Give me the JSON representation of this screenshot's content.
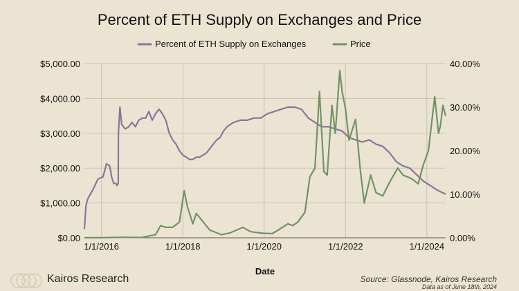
{
  "chart_data": {
    "type": "line",
    "title": "Percent of ETH Supply on Exchanges and Price",
    "xlabel": "Date",
    "x_ticks": [
      "1/1/2016",
      "1/1/2018",
      "1/1/2020",
      "1/1/2022",
      "1/1/2024"
    ],
    "x_range": [
      "2015-08-01",
      "2024-06-18"
    ],
    "y_left": {
      "label": "",
      "range": [
        0,
        5000
      ],
      "ticks": [
        "$0.00",
        "$1,000.00",
        "$2,000.00",
        "$3,000.00",
        "$4,000.00",
        "$5,000.00"
      ]
    },
    "y_right": {
      "label": "",
      "range": [
        0,
        40
      ],
      "ticks": [
        "0.00%",
        "10.00%",
        "20.00%",
        "30.00%",
        "40.00%"
      ]
    },
    "grid": true,
    "legend_position": "top-center",
    "series": [
      {
        "name": "Percent of ETH Supply on Exchanges",
        "axis": "right",
        "color": "#8c7499",
        "x": [
          "2015-08-01",
          "2015-08-15",
          "2015-09-01",
          "2015-10-15",
          "2015-12-01",
          "2016-01-15",
          "2016-02-15",
          "2016-03-15",
          "2016-04-01",
          "2016-04-20",
          "2016-05-10",
          "2016-05-20",
          "2016-05-31",
          "2016-06-01",
          "2016-06-15",
          "2016-07-01",
          "2016-08-01",
          "2016-09-01",
          "2016-10-01",
          "2016-11-01",
          "2016-12-01",
          "2017-01-01",
          "2017-02-01",
          "2017-03-01",
          "2017-04-01",
          "2017-05-01",
          "2017-06-01",
          "2017-07-01",
          "2017-08-01",
          "2017-09-01",
          "2017-10-01",
          "2017-11-01",
          "2017-12-01",
          "2018-01-01",
          "2018-02-01",
          "2018-03-01",
          "2018-04-01",
          "2018-05-01",
          "2018-06-01",
          "2018-07-01",
          "2018-08-01",
          "2018-09-01",
          "2018-10-01",
          "2018-11-01",
          "2018-12-01",
          "2019-01-01",
          "2019-02-01",
          "2019-04-01",
          "2019-06-01",
          "2019-08-01",
          "2019-10-01",
          "2019-12-01",
          "2020-02-01",
          "2020-04-01",
          "2020-06-01",
          "2020-08-01",
          "2020-10-01",
          "2020-12-01",
          "2021-02-01",
          "2021-04-01",
          "2021-06-01",
          "2021-08-01",
          "2021-10-01",
          "2021-12-01",
          "2022-02-01",
          "2022-04-01",
          "2022-06-01",
          "2022-08-01",
          "2022-10-01",
          "2022-12-01",
          "2023-02-01",
          "2023-04-01",
          "2023-06-01",
          "2023-08-01",
          "2023-10-01",
          "2023-12-01",
          "2024-02-01",
          "2024-04-01",
          "2024-06-18"
        ],
        "values": [
          2.0,
          7.5,
          9.0,
          11.0,
          13.5,
          14.0,
          17.0,
          16.5,
          14.0,
          12.5,
          12.5,
          12.0,
          12.5,
          24.0,
          30.0,
          26.0,
          25.0,
          25.5,
          26.5,
          25.5,
          27.0,
          27.5,
          27.5,
          29.0,
          27.0,
          28.5,
          29.5,
          28.5,
          27.0,
          24.0,
          22.5,
          21.5,
          20.0,
          19.0,
          18.5,
          18.0,
          18.0,
          18.5,
          18.5,
          19.0,
          19.5,
          20.5,
          21.5,
          22.5,
          23.0,
          24.5,
          25.5,
          26.5,
          27.0,
          27.0,
          27.5,
          27.5,
          28.5,
          29.0,
          29.5,
          30.0,
          30.0,
          29.5,
          27.5,
          26.5,
          25.5,
          25.5,
          25.0,
          24.5,
          23.0,
          22.5,
          22.0,
          22.5,
          21.5,
          21.0,
          19.5,
          17.5,
          16.5,
          16.0,
          14.5,
          13.0,
          12.0,
          11.0,
          10.0
        ]
      },
      {
        "name": "Price",
        "axis": "left",
        "color": "#6f9366",
        "x": [
          "2015-08-01",
          "2016-01-01",
          "2016-06-01",
          "2017-01-01",
          "2017-03-01",
          "2017-05-01",
          "2017-06-15",
          "2017-08-01",
          "2017-10-01",
          "2017-12-01",
          "2018-01-13",
          "2018-02-10",
          "2018-04-01",
          "2018-05-01",
          "2018-07-01",
          "2018-09-01",
          "2018-12-15",
          "2019-03-01",
          "2019-06-25",
          "2019-09-01",
          "2019-12-15",
          "2020-03-13",
          "2020-05-01",
          "2020-08-01",
          "2020-09-15",
          "2020-11-01",
          "2021-01-01",
          "2021-02-15",
          "2021-04-01",
          "2021-05-12",
          "2021-06-20",
          "2021-07-20",
          "2021-09-01",
          "2021-10-01",
          "2021-11-10",
          "2021-12-01",
          "2022-01-01",
          "2022-02-01",
          "2022-04-01",
          "2022-05-15",
          "2022-06-18",
          "2022-08-15",
          "2022-10-01",
          "2022-12-01",
          "2023-02-01",
          "2023-04-15",
          "2023-06-01",
          "2023-08-15",
          "2023-10-15",
          "2023-12-01",
          "2024-01-15",
          "2024-03-12",
          "2024-04-15",
          "2024-05-01",
          "2024-05-25",
          "2024-06-18"
        ],
        "values": [
          1,
          1,
          14,
          9,
          50,
          90,
          350,
          300,
          300,
          450,
          1350,
          900,
          400,
          700,
          460,
          220,
          90,
          140,
          300,
          175,
          130,
          120,
          210,
          400,
          350,
          460,
          730,
          1750,
          2000,
          4200,
          1900,
          1800,
          3800,
          3000,
          4800,
          4200,
          3700,
          2800,
          3400,
          1900,
          1000,
          1800,
          1300,
          1200,
          1600,
          2000,
          1800,
          1700,
          1550,
          2100,
          2500,
          4050,
          3000,
          3200,
          3800,
          3500
        ]
      }
    ]
  },
  "brand": {
    "name": "Kairos Research",
    "icon": "overlapping-circles-logo"
  },
  "footer": {
    "source": "Source: Glassnode, Kairos Research",
    "as_of": "Data as of June 18th, 2024"
  }
}
